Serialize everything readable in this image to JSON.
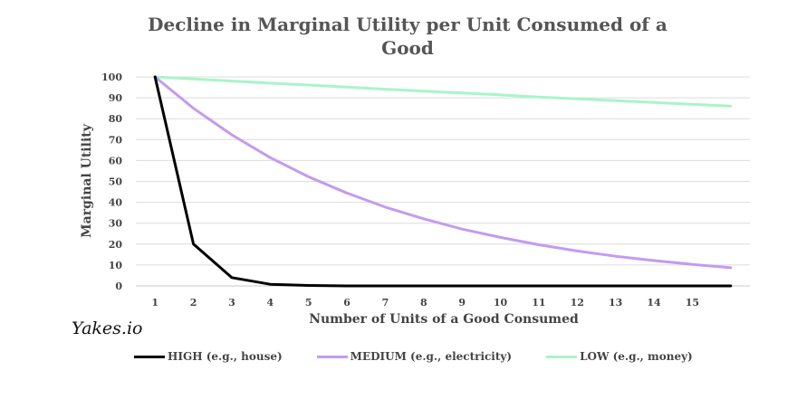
{
  "chart_data": {
    "type": "line",
    "title": "Decline in Marginal Utility per Unit Consumed of a Good",
    "xlabel": "Number of Units of a Good Consumed",
    "ylabel": "Marginal Utility",
    "x": [
      1,
      2,
      3,
      4,
      5,
      6,
      7,
      8,
      9,
      10,
      11,
      12,
      13,
      14,
      15,
      16
    ],
    "x_tick_labels": [
      "1",
      "2",
      "3",
      "4",
      "5",
      "6",
      "7",
      "8",
      "9",
      "10",
      "11",
      "12",
      "13",
      "14",
      "15"
    ],
    "ylim": [
      0,
      100
    ],
    "y_ticks": [
      0,
      10,
      20,
      30,
      40,
      50,
      60,
      70,
      80,
      90,
      100
    ],
    "grid": "horizontal",
    "legend_position": "bottom",
    "series": [
      {
        "name": "HIGH (e.g., house)",
        "color": "#000000",
        "values": [
          100,
          20,
          4,
          0.8,
          0.2,
          0,
          0,
          0,
          0,
          0,
          0,
          0,
          0,
          0,
          0,
          0
        ]
      },
      {
        "name": "MEDIUM (e.g., electricity)",
        "color": "#c39bf0",
        "values": [
          100,
          85,
          72.3,
          61.4,
          52.2,
          44.4,
          37.7,
          32.1,
          27.2,
          23.2,
          19.7,
          16.7,
          14.2,
          12.1,
          10.3,
          8.7
        ]
      },
      {
        "name": "LOW (e.g., money)",
        "color": "#a8f5c8",
        "values": [
          100,
          99,
          98,
          97,
          96.1,
          95.1,
          94.1,
          93.2,
          92.3,
          91.4,
          90.4,
          89.5,
          88.6,
          87.8,
          86.9,
          86
        ]
      }
    ]
  },
  "watermark": "Yakes.io"
}
